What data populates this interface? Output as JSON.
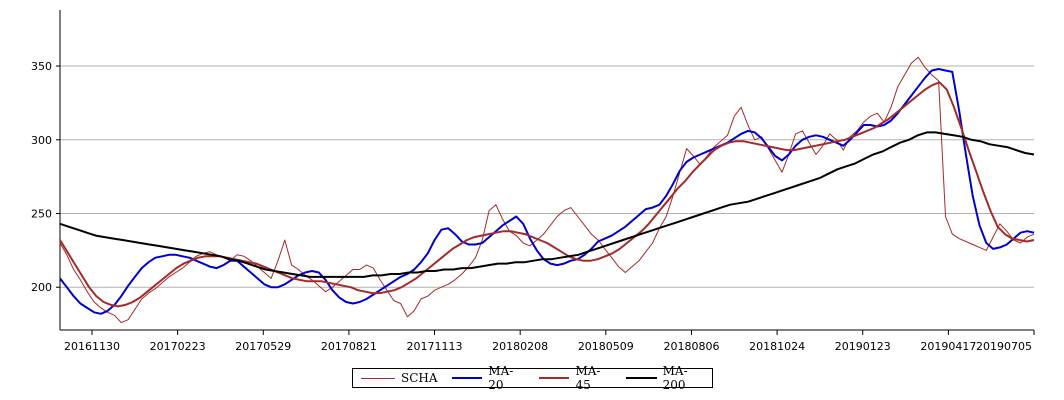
{
  "chart_data": {
    "type": "line",
    "x_tick_labels": [
      "20161130",
      "20170223",
      "20170529",
      "20170821",
      "20171113",
      "20180208",
      "20180509",
      "20180806",
      "20181024",
      "20190123",
      "20190417",
      "20190705"
    ],
    "y_ticks": [
      200,
      250,
      300,
      350
    ],
    "ylim": [
      171,
      388
    ],
    "grid": "horizontal",
    "legend_position": "bottom-center",
    "series": [
      {
        "name": "SCHA",
        "color": "#a52a2a",
        "values": [
          230,
          222,
          212,
          205,
          197,
          190,
          186,
          183,
          181,
          176,
          178,
          185,
          192,
          196,
          199,
          203,
          207,
          210,
          213,
          217,
          221,
          223,
          224,
          222,
          220,
          218,
          222,
          221,
          218,
          214,
          210,
          206,
          218,
          232,
          215,
          212,
          208,
          205,
          201,
          197,
          200,
          204,
          208,
          212,
          212,
          215,
          213,
          205,
          198,
          191,
          189,
          180,
          184,
          192,
          194,
          198,
          200,
          202,
          205,
          209,
          214,
          220,
          232,
          252,
          256,
          246,
          238,
          235,
          230,
          228,
          232,
          236,
          242,
          248,
          252,
          254,
          248,
          242,
          236,
          232,
          226,
          220,
          214,
          210,
          214,
          218,
          224,
          230,
          240,
          248,
          262,
          278,
          294,
          289,
          283,
          289,
          295,
          299,
          303,
          316,
          322,
          310,
          300,
          302,
          294,
          286,
          278,
          290,
          304,
          306,
          298,
          290,
          296,
          304,
          300,
          293,
          302,
          306,
          312,
          316,
          318,
          312,
          322,
          336,
          344,
          352,
          356,
          349,
          344,
          340,
          248,
          236,
          233,
          231,
          229,
          227,
          225,
          234,
          243,
          238,
          232,
          230,
          234,
          236
        ]
      },
      {
        "name": "MA-20",
        "color": "#0000cd",
        "values": [
          206,
          200,
          194,
          189,
          186,
          183,
          182,
          184,
          188,
          194,
          201,
          207,
          213,
          217,
          220,
          221,
          222,
          222,
          221,
          220,
          218,
          216,
          214,
          213,
          215,
          218,
          218,
          214,
          210,
          206,
          202,
          200,
          200,
          202,
          205,
          208,
          210,
          211,
          210,
          205,
          198,
          193,
          190,
          189,
          190,
          192,
          195,
          198,
          201,
          204,
          207,
          209,
          212,
          217,
          223,
          232,
          239,
          240,
          236,
          231,
          229,
          229,
          230,
          234,
          238,
          242,
          245,
          248,
          243,
          233,
          225,
          219,
          216,
          215,
          216,
          218,
          219,
          222,
          226,
          231,
          233,
          235,
          238,
          241,
          245,
          249,
          253,
          254,
          256,
          262,
          270,
          279,
          285,
          288,
          290,
          292,
          294,
          296,
          298,
          301,
          304,
          306,
          305,
          301,
          295,
          289,
          286,
          290,
          296,
          300,
          302,
          303,
          302,
          300,
          298,
          296,
          300,
          305,
          310,
          310,
          309,
          310,
          313,
          318,
          324,
          330,
          336,
          342,
          347,
          348,
          347,
          346,
          320,
          290,
          262,
          242,
          230,
          226,
          227,
          229,
          233,
          237,
          238,
          237
        ]
      },
      {
        "name": "MA-45",
        "color": "#a52a2a",
        "values": [
          232,
          224,
          216,
          208,
          200,
          194,
          190,
          188,
          187,
          188,
          190,
          193,
          197,
          201,
          205,
          209,
          213,
          216,
          218,
          220,
          221,
          221,
          221,
          220,
          219,
          218,
          217,
          216,
          214,
          212,
          210,
          208,
          206,
          205,
          204,
          204,
          204,
          203,
          202,
          201,
          200,
          198,
          197,
          196,
          196,
          197,
          198,
          200,
          203,
          206,
          210,
          214,
          218,
          222,
          226,
          229,
          232,
          234,
          235,
          236,
          237,
          238,
          238,
          237,
          236,
          234,
          232,
          230,
          227,
          224,
          221,
          219,
          218,
          218,
          219,
          221,
          223,
          226,
          230,
          234,
          238,
          243,
          249,
          255,
          261,
          267,
          272,
          278,
          283,
          288,
          293,
          296,
          298,
          299,
          299,
          298,
          297,
          296,
          295,
          294,
          293,
          293,
          294,
          295,
          296,
          297,
          298,
          299,
          300,
          302,
          304,
          306,
          308,
          311,
          314,
          318,
          322,
          326,
          330,
          334,
          337,
          339,
          334,
          322,
          308,
          293,
          279,
          265,
          252,
          241,
          236,
          233,
          232,
          231,
          232
        ]
      },
      {
        "name": "MA-200",
        "color": "#000000",
        "values": [
          243,
          241,
          239,
          237,
          235,
          234,
          233,
          232,
          231,
          230,
          229,
          228,
          227,
          226,
          225,
          224,
          223,
          222,
          221,
          219,
          218,
          216,
          214,
          212,
          211,
          210,
          209,
          208,
          207,
          207,
          207,
          207,
          207,
          207,
          207,
          208,
          208,
          209,
          209,
          210,
          210,
          211,
          211,
          212,
          212,
          213,
          213,
          214,
          215,
          216,
          216,
          217,
          217,
          218,
          219,
          219,
          220,
          221,
          222,
          224,
          226,
          228,
          230,
          232,
          234,
          236,
          238,
          240,
          242,
          244,
          246,
          248,
          250,
          252,
          254,
          256,
          257,
          258,
          260,
          262,
          264,
          266,
          268,
          270,
          272,
          274,
          277,
          280,
          282,
          284,
          287,
          290,
          292,
          295,
          298,
          300,
          303,
          305,
          305,
          304,
          303,
          302,
          300,
          299,
          297,
          296,
          295,
          293,
          291,
          290
        ]
      }
    ]
  }
}
